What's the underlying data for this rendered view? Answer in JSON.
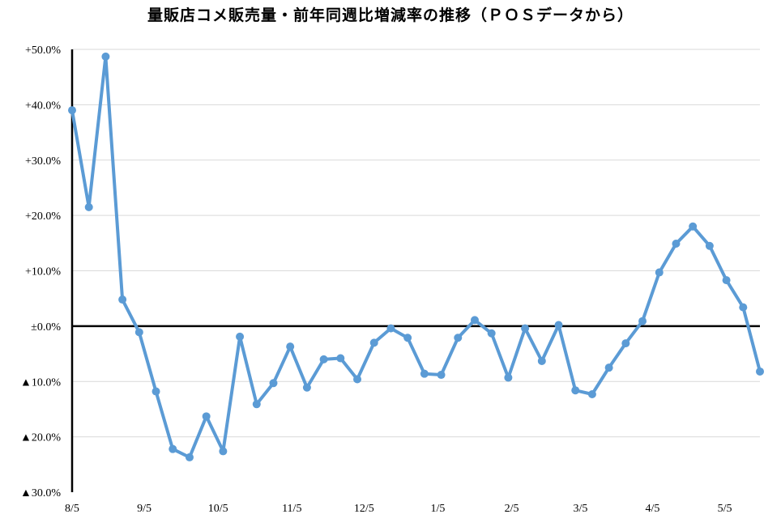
{
  "chart_data": {
    "type": "line",
    "title": "量販店コメ販売量・前年同週比増減率の推移（ＰＯＳデータから）",
    "xlabel": "",
    "ylabel": "",
    "ylim": [
      -30,
      50
    ],
    "grid": "horizontal",
    "line_color": "#5B9BD5",
    "y_ticks": [
      {
        "value": 50,
        "label": "+50.0%"
      },
      {
        "value": 40,
        "label": "+40.0%"
      },
      {
        "value": 30,
        "label": "+30.0%"
      },
      {
        "value": 20,
        "label": "+20.0%"
      },
      {
        "value": 10,
        "label": "+10.0%"
      },
      {
        "value": 0,
        "label": "±0.0%"
      },
      {
        "value": -10,
        "label": "▲10.0%"
      },
      {
        "value": -20,
        "label": "▲20.0%"
      },
      {
        "value": -30,
        "label": "▲30.0%"
      }
    ],
    "x_ticks": [
      {
        "index": 0,
        "label": "8/5"
      },
      {
        "index": 4.3,
        "label": "9/5"
      },
      {
        "index": 8.7,
        "label": "10/5"
      },
      {
        "index": 13.1,
        "label": "11/5"
      },
      {
        "index": 17.4,
        "label": "12/5"
      },
      {
        "index": 21.8,
        "label": "1/5"
      },
      {
        "index": 26.2,
        "label": "2/5"
      },
      {
        "index": 30.3,
        "label": "3/5"
      },
      {
        "index": 34.6,
        "label": "4/5"
      },
      {
        "index": 38.9,
        "label": "5/5"
      }
    ],
    "values": [
      39.0,
      21.5,
      48.7,
      4.8,
      -1.1,
      -11.8,
      -22.2,
      -23.7,
      -16.3,
      -22.6,
      -1.9,
      -14.1,
      -10.3,
      -3.7,
      -11.1,
      -6.0,
      -5.8,
      -9.6,
      -3.0,
      -0.4,
      -2.1,
      -8.6,
      -8.8,
      -2.1,
      1.1,
      -1.3,
      -9.3,
      -0.4,
      -6.3,
      0.2,
      -11.6,
      -12.3,
      -7.5,
      -3.1,
      0.9,
      9.7,
      14.9,
      18.0,
      14.5,
      8.3,
      3.4,
      -8.2
    ]
  }
}
